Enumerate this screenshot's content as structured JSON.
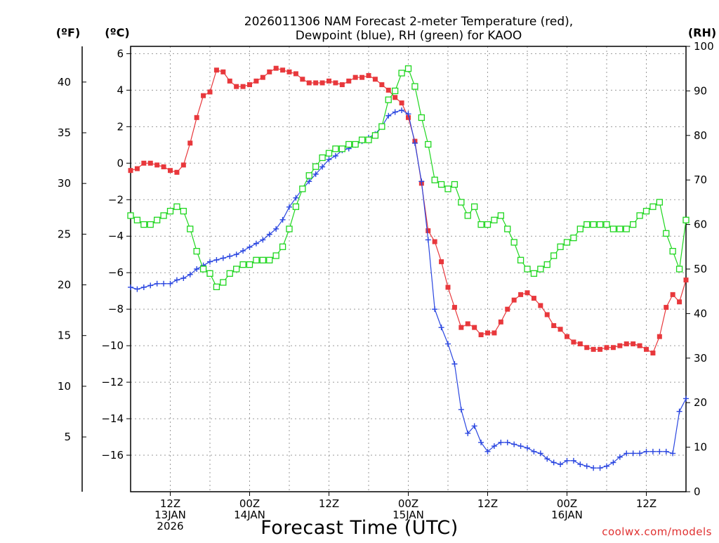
{
  "chart_data": {
    "type": "line",
    "title_line1": "2026011306 NAM Forecast 2-meter Temperature (red),",
    "title_line2": "Dewpoint (blue), RH (green) for KAOO",
    "xlabel": "Forecast Time (UTC)",
    "credit": "coolwx.com/models",
    "unit_f": "(ºF)",
    "unit_c": "(ºC)",
    "unit_rh": "(RH)",
    "x_hours_range": [
      0,
      84
    ],
    "celsius_axis": {
      "min": -18,
      "max": 6.4,
      "ticks": [
        6,
        4,
        2,
        0,
        -2,
        -4,
        -6,
        -8,
        -10,
        -12,
        -14,
        -16
      ]
    },
    "fahrenheit_axis": {
      "ticks": [
        40,
        35,
        30,
        25,
        20,
        15,
        10,
        5
      ]
    },
    "rh_axis": {
      "min": 0,
      "max": 100,
      "ticks": [
        100,
        90,
        80,
        70,
        60,
        50,
        40,
        30,
        20,
        10,
        0
      ]
    },
    "x_ticks": [
      {
        "hour": 6,
        "lines": [
          "12Z",
          "13JAN",
          "2026"
        ]
      },
      {
        "hour": 18,
        "lines": [
          "00Z",
          "14JAN"
        ]
      },
      {
        "hour": 30,
        "lines": [
          "12Z"
        ]
      },
      {
        "hour": 42,
        "lines": [
          "00Z",
          "15JAN"
        ]
      },
      {
        "hour": 54,
        "lines": [
          "12Z"
        ]
      },
      {
        "hour": 66,
        "lines": [
          "00Z",
          "16JAN"
        ]
      },
      {
        "hour": 78,
        "lines": [
          "12Z"
        ]
      }
    ],
    "series": [
      {
        "name": "Temperature",
        "unit": "C",
        "color": "#e8383c",
        "marker": "filled-square",
        "x": [
          0,
          1,
          2,
          3,
          4,
          5,
          6,
          7,
          8,
          9,
          10,
          11,
          12,
          13,
          14,
          15,
          16,
          17,
          18,
          19,
          20,
          21,
          22,
          23,
          24,
          25,
          26,
          27,
          28,
          29,
          30,
          31,
          32,
          33,
          34,
          35,
          36,
          37,
          38,
          39,
          40,
          41,
          42,
          43,
          44,
          45,
          46,
          47,
          48,
          49,
          50,
          51,
          52,
          53,
          54,
          55,
          56,
          57,
          58,
          59,
          60,
          61,
          62,
          63,
          64,
          65,
          66,
          67,
          68,
          69,
          70,
          71,
          72,
          73,
          74,
          75,
          76,
          77,
          78,
          79,
          80,
          81,
          82,
          83,
          84
        ],
        "values": [
          -0.4,
          -0.3,
          0.0,
          0.0,
          -0.1,
          -0.2,
          -0.4,
          -0.5,
          -0.1,
          1.1,
          2.5,
          3.7,
          3.9,
          5.1,
          5.0,
          4.5,
          4.2,
          4.2,
          4.3,
          4.5,
          4.7,
          5.0,
          5.2,
          5.1,
          5.0,
          4.9,
          4.6,
          4.4,
          4.4,
          4.4,
          4.5,
          4.4,
          4.3,
          4.5,
          4.7,
          4.7,
          4.8,
          4.6,
          4.3,
          4.0,
          3.6,
          3.3,
          2.5,
          1.2,
          -1.1,
          -3.7,
          -4.3,
          -5.4,
          -6.8,
          -7.9,
          -9.0,
          -8.8,
          -9.0,
          -9.4,
          -9.3,
          -9.3,
          -8.7,
          -8.0,
          -7.5,
          -7.2,
          -7.1,
          -7.4,
          -7.8,
          -8.3,
          -8.9,
          -9.1,
          -9.5,
          -9.8,
          -9.9,
          -10.1,
          -10.2,
          -10.2,
          -10.1,
          -10.1,
          -10.0,
          -9.9,
          -9.9,
          -10.0,
          -10.2,
          -10.4,
          -9.5,
          -7.9,
          -7.2,
          -7.6,
          -6.4
        ]
      },
      {
        "name": "Dewpoint",
        "unit": "C",
        "color": "#2a46e0",
        "marker": "plus",
        "x": [
          0,
          1,
          2,
          3,
          4,
          5,
          6,
          7,
          8,
          9,
          10,
          11,
          12,
          13,
          14,
          15,
          16,
          17,
          18,
          19,
          20,
          21,
          22,
          23,
          24,
          25,
          26,
          27,
          28,
          29,
          30,
          31,
          32,
          33,
          34,
          35,
          36,
          37,
          38,
          39,
          40,
          41,
          42,
          43,
          44,
          45,
          46,
          47,
          48,
          49,
          50,
          51,
          52,
          53,
          54,
          55,
          56,
          57,
          58,
          59,
          60,
          61,
          62,
          63,
          64,
          65,
          66,
          67,
          68,
          69,
          70,
          71,
          72,
          73,
          74,
          75,
          76,
          77,
          78,
          79,
          80,
          81,
          82,
          83,
          84
        ],
        "values": [
          -6.8,
          -6.9,
          -6.8,
          -6.7,
          -6.6,
          -6.6,
          -6.6,
          -6.4,
          -6.3,
          -6.1,
          -5.8,
          -5.6,
          -5.4,
          -5.3,
          -5.2,
          -5.1,
          -5.0,
          -4.8,
          -4.6,
          -4.4,
          -4.2,
          -3.9,
          -3.6,
          -3.1,
          -2.4,
          -1.9,
          -1.4,
          -1.0,
          -0.6,
          -0.2,
          0.2,
          0.4,
          0.7,
          0.8,
          1.0,
          1.2,
          1.4,
          1.6,
          2.0,
          2.6,
          2.8,
          2.9,
          2.7,
          1.1,
          -1.0,
          -4.2,
          -8.0,
          -9.0,
          -9.9,
          -11.0,
          -13.5,
          -14.8,
          -14.4,
          -15.3,
          -15.8,
          -15.5,
          -15.3,
          -15.3,
          -15.4,
          -15.5,
          -15.6,
          -15.8,
          -15.9,
          -16.2,
          -16.4,
          -16.5,
          -16.3,
          -16.3,
          -16.5,
          -16.6,
          -16.7,
          -16.7,
          -16.6,
          -16.4,
          -16.1,
          -15.9,
          -15.9,
          -15.9,
          -15.8,
          -15.8,
          -15.8,
          -15.8,
          -15.9,
          -13.6,
          -12.9
        ]
      },
      {
        "name": "Relative Humidity",
        "unit": "%",
        "color": "#1ed61e",
        "marker": "open-square",
        "x": [
          0,
          1,
          2,
          3,
          4,
          5,
          6,
          7,
          8,
          9,
          10,
          11,
          12,
          13,
          14,
          15,
          16,
          17,
          18,
          19,
          20,
          21,
          22,
          23,
          24,
          25,
          26,
          27,
          28,
          29,
          30,
          31,
          32,
          33,
          34,
          35,
          36,
          37,
          38,
          39,
          40,
          41,
          42,
          43,
          44,
          45,
          46,
          47,
          48,
          49,
          50,
          51,
          52,
          53,
          54,
          55,
          56,
          57,
          58,
          59,
          60,
          61,
          62,
          63,
          64,
          65,
          66,
          67,
          68,
          69,
          70,
          71,
          72,
          73,
          74,
          75,
          76,
          77,
          78,
          79,
          80,
          81,
          82,
          83,
          84
        ],
        "values": [
          62,
          61,
          60,
          60,
          61,
          62,
          63,
          64,
          63,
          59,
          54,
          50,
          49,
          46,
          47,
          49,
          50,
          51,
          51,
          52,
          52,
          52,
          53,
          55,
          59,
          64,
          68,
          71,
          73,
          75,
          76,
          77,
          77,
          78,
          78,
          79,
          79,
          80,
          82,
          88,
          90,
          94,
          95,
          91,
          84,
          78,
          70,
          69,
          68,
          69,
          65,
          62,
          64,
          60,
          60,
          61,
          62,
          59,
          56,
          52,
          50,
          49,
          50,
          51,
          53,
          55,
          56,
          57,
          59,
          60,
          60,
          60,
          60,
          59,
          59,
          59,
          60,
          62,
          63,
          64,
          65,
          58,
          54,
          50,
          61
        ]
      }
    ]
  }
}
